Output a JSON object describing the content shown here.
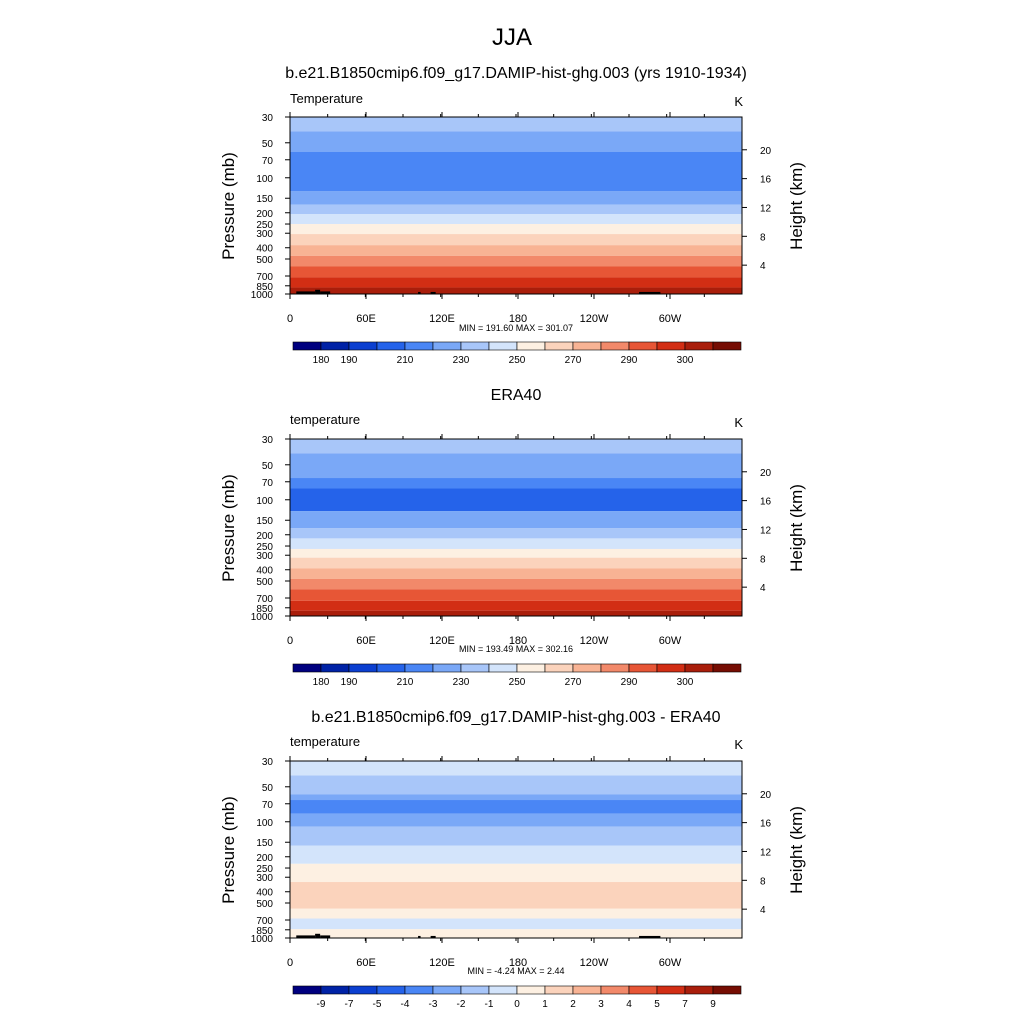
{
  "figure": {
    "title": "JJA"
  },
  "colors": {
    "palette": [
      "#00007f",
      "#0022a6",
      "#0b3fd0",
      "#2563ea",
      "#4a86f5",
      "#7aa8f7",
      "#a8c6f9",
      "#d3e4fb",
      "#fdf0e2",
      "#fbd3bc",
      "#f8b394",
      "#f2896a",
      "#e75636",
      "#d22e14",
      "#a91e0b",
      "#760d03"
    ],
    "continents": "#000000"
  },
  "panels": [
    {
      "title": "b.e21.B1850cmip6.f09_g17.DAMIP-hist-ghg.003 (yrs 1910-1934)",
      "left_label": "Temperature",
      "units": "K",
      "stats": "MIN = 191.60  MAX = 301.07",
      "ylabel_left": "Pressure (mb)",
      "ylabel_right": "Height (km)",
      "pressure_ticks": [
        "30",
        "50",
        "70",
        "100",
        "150",
        "200",
        "250",
        "300",
        "400",
        "500",
        "700",
        "850",
        "1000"
      ],
      "height_ticks": [
        "20",
        "16",
        "12",
        "8",
        "4"
      ],
      "lon_ticks": [
        "0",
        "60E",
        "120E",
        "180",
        "120W",
        "60W"
      ],
      "colorbar_labels": [
        "180",
        "190",
        "210",
        "230",
        "250",
        "270",
        "290",
        "300"
      ]
    },
    {
      "title": "ERA40",
      "left_label": "temperature",
      "units": "K",
      "stats": "MIN = 193.49  MAX = 302.16",
      "ylabel_left": "Pressure (mb)",
      "ylabel_right": "Height (km)",
      "pressure_ticks": [
        "30",
        "50",
        "70",
        "100",
        "150",
        "200",
        "250",
        "300",
        "400",
        "500",
        "700",
        "850",
        "1000"
      ],
      "height_ticks": [
        "20",
        "16",
        "12",
        "8",
        "4"
      ],
      "lon_ticks": [
        "0",
        "60E",
        "120E",
        "180",
        "120W",
        "60W"
      ],
      "colorbar_labels": [
        "180",
        "190",
        "210",
        "230",
        "250",
        "270",
        "290",
        "300"
      ]
    },
    {
      "title": "b.e21.B1850cmip6.f09_g17.DAMIP-hist-ghg.003 - ERA40",
      "left_label": "temperature",
      "units": "K",
      "stats": "MIN = -4.24  MAX =   2.44",
      "ylabel_left": "Pressure (mb)",
      "ylabel_right": "Height (km)",
      "pressure_ticks": [
        "30",
        "50",
        "70",
        "100",
        "150",
        "200",
        "250",
        "300",
        "400",
        "500",
        "700",
        "850",
        "1000"
      ],
      "height_ticks": [
        "20",
        "16",
        "12",
        "8",
        "4"
      ],
      "lon_ticks": [
        "0",
        "60E",
        "120E",
        "180",
        "120W",
        "60W"
      ],
      "colorbar_labels": [
        "-9",
        "-7",
        "-5",
        "-4",
        "-3",
        "-2",
        "-1",
        "0",
        "1",
        "2",
        "3",
        "4",
        "5",
        "7",
        "9"
      ]
    }
  ],
  "chart_data": [
    {
      "type": "heatmap",
      "title": "b.e21.B1850cmip6.f09_g17.DAMIP-hist-ghg.003 (yrs 1910-1934)",
      "x_range": [
        0,
        360
      ],
      "x_ticks": [
        "0",
        "60E",
        "120E",
        "180",
        "120W",
        "60W"
      ],
      "y_axis": "pressure (mb), log scale, reversed",
      "y_range": [
        1000,
        30
      ],
      "y2_axis": "height (km)",
      "min": 191.6,
      "max": 301.07,
      "contour_levels": [
        180,
        185,
        190,
        200,
        210,
        220,
        230,
        240,
        250,
        260,
        270,
        280,
        290,
        295,
        300
      ],
      "layer_bands": [
        {
          "p_top": 30,
          "p_bottom": 40,
          "band": 6
        },
        {
          "p_top": 40,
          "p_bottom": 60,
          "band": 5
        },
        {
          "p_top": 60,
          "p_bottom": 130,
          "band": 4
        },
        {
          "p_top": 130,
          "p_bottom": 170,
          "band": 5
        },
        {
          "p_top": 170,
          "p_bottom": 205,
          "band": 6
        },
        {
          "p_top": 205,
          "p_bottom": 250,
          "band": 7
        },
        {
          "p_top": 250,
          "p_bottom": 305,
          "band": 8
        },
        {
          "p_top": 305,
          "p_bottom": 380,
          "band": 9
        },
        {
          "p_top": 380,
          "p_bottom": 470,
          "band": 10
        },
        {
          "p_top": 470,
          "p_bottom": 580,
          "band": 11
        },
        {
          "p_top": 580,
          "p_bottom": 720,
          "band": 12
        },
        {
          "p_top": 720,
          "p_bottom": 880,
          "band": 13
        },
        {
          "p_top": 880,
          "p_bottom": 1000,
          "band": 14
        }
      ],
      "topography_masks": [
        [
          5,
          20,
          950
        ],
        [
          20,
          24,
          920
        ],
        [
          24,
          32,
          950
        ],
        [
          102,
          104,
          960
        ],
        [
          112,
          116,
          960
        ],
        [
          278,
          295,
          960
        ]
      ]
    },
    {
      "type": "heatmap",
      "title": "ERA40",
      "x_range": [
        0,
        360
      ],
      "x_ticks": [
        "0",
        "60E",
        "120E",
        "180",
        "120W",
        "60W"
      ],
      "y_axis": "pressure (mb), log scale, reversed",
      "y_range": [
        1000,
        30
      ],
      "y2_axis": "height (km)",
      "min": 193.49,
      "max": 302.16,
      "contour_levels": [
        180,
        185,
        190,
        200,
        210,
        220,
        230,
        240,
        250,
        260,
        270,
        280,
        290,
        295,
        300
      ],
      "layer_bands": [
        {
          "p_top": 30,
          "p_bottom": 40,
          "band": 6
        },
        {
          "p_top": 40,
          "p_bottom": 65,
          "band": 5
        },
        {
          "p_top": 65,
          "p_bottom": 80,
          "band": 4
        },
        {
          "p_top": 80,
          "p_bottom": 125,
          "band": 3
        },
        {
          "p_top": 125,
          "p_bottom": 175,
          "band": 5
        },
        {
          "p_top": 175,
          "p_bottom": 215,
          "band": 6
        },
        {
          "p_top": 215,
          "p_bottom": 265,
          "band": 7
        },
        {
          "p_top": 265,
          "p_bottom": 315,
          "band": 8
        },
        {
          "p_top": 315,
          "p_bottom": 390,
          "band": 9
        },
        {
          "p_top": 390,
          "p_bottom": 480,
          "band": 10
        },
        {
          "p_top": 480,
          "p_bottom": 590,
          "band": 11
        },
        {
          "p_top": 590,
          "p_bottom": 740,
          "band": 12
        },
        {
          "p_top": 740,
          "p_bottom": 900,
          "band": 13
        },
        {
          "p_top": 900,
          "p_bottom": 1000,
          "band": 14
        }
      ],
      "topography_masks": []
    },
    {
      "type": "heatmap",
      "title": "b.e21.B1850cmip6.f09_g17.DAMIP-hist-ghg.003 - ERA40",
      "x_range": [
        0,
        360
      ],
      "x_ticks": [
        "0",
        "60E",
        "120E",
        "180",
        "120W",
        "60W"
      ],
      "y_axis": "pressure (mb), log scale, reversed",
      "y_range": [
        1000,
        30
      ],
      "y2_axis": "height (km)",
      "min": -4.24,
      "max": 2.44,
      "contour_levels": [
        -9,
        -7,
        -5,
        -4,
        -3,
        -2,
        -1,
        0,
        1,
        2,
        3,
        4,
        5,
        7,
        9
      ],
      "layer_bands": [
        {
          "p_top": 30,
          "p_bottom": 40,
          "band": 7
        },
        {
          "p_top": 40,
          "p_bottom": 58,
          "band": 6
        },
        {
          "p_top": 58,
          "p_bottom": 65,
          "band": 5
        },
        {
          "p_top": 65,
          "p_bottom": 85,
          "band": 4
        },
        {
          "p_top": 85,
          "p_bottom": 110,
          "band": 5
        },
        {
          "p_top": 110,
          "p_bottom": 160,
          "band": 6
        },
        {
          "p_top": 160,
          "p_bottom": 230,
          "band": 7
        },
        {
          "p_top": 230,
          "p_bottom": 330,
          "band": 8
        },
        {
          "p_top": 330,
          "p_bottom": 560,
          "band": 9
        },
        {
          "p_top": 560,
          "p_bottom": 680,
          "band": 8
        },
        {
          "p_top": 680,
          "p_bottom": 840,
          "band": 7
        },
        {
          "p_top": 840,
          "p_bottom": 1000,
          "band": 8
        }
      ],
      "topography_masks": [
        [
          5,
          20,
          950
        ],
        [
          20,
          24,
          920
        ],
        [
          24,
          32,
          950
        ],
        [
          102,
          104,
          960
        ],
        [
          112,
          116,
          960
        ],
        [
          278,
          295,
          960
        ]
      ]
    }
  ]
}
